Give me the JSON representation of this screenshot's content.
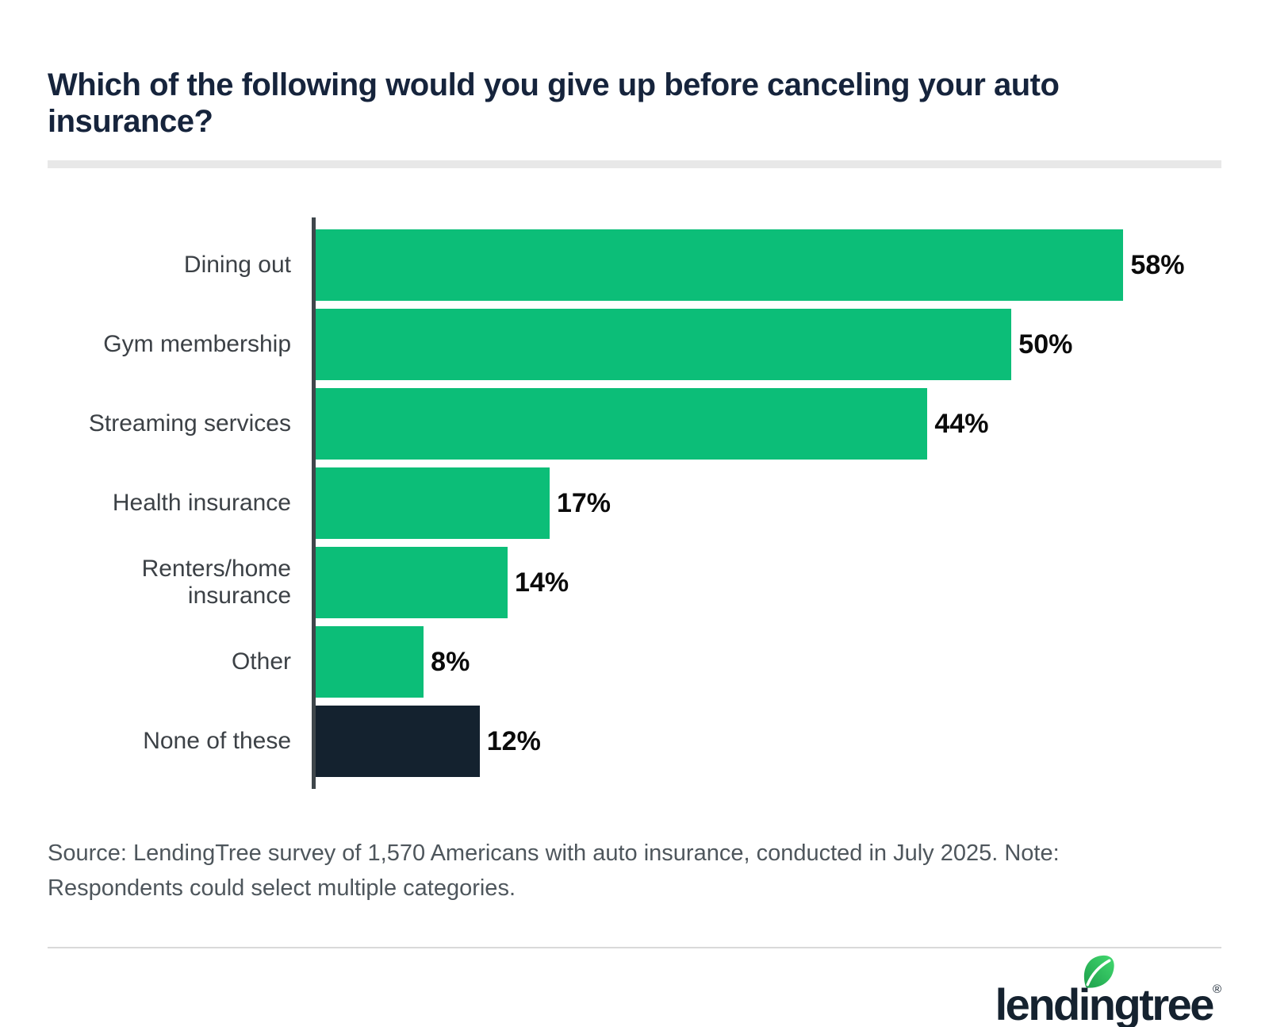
{
  "page": {
    "title": "Which of the following would you give up before canceling your auto insurance?",
    "source_note": "Source: LendingTree survey of 1,570 Americans with auto insurance, conducted in July 2025. Note: Respondents could select multiple categories.",
    "brand": {
      "logo_text": "lendingtree",
      "registered_mark": "®"
    }
  },
  "colors": {
    "bar_green": "#0CBE78",
    "bar_navy": "#14222F",
    "title_navy": "#16243C",
    "category_label_gray": "#3C4146",
    "value_label_black": "#0B0B0B",
    "axis_gray": "#3F464B",
    "title_rule_gray": "#E8E8E8",
    "divider_gray": "#D9D9D9",
    "source_text_gray": "#4E565C",
    "logo_navy": "#15222F",
    "leaf_green_dark": "#1C9F4B",
    "leaf_green_light": "#43D96F"
  },
  "chart_data": {
    "type": "bar",
    "orientation": "horizontal",
    "title": "Which of the following would you give up before canceling your auto insurance?",
    "categories": [
      "Dining out",
      "Gym membership",
      "Streaming services",
      "Health insurance",
      "Renters/home insurance",
      "Other",
      "None of these"
    ],
    "values": [
      58,
      50,
      44,
      17,
      14,
      8,
      12
    ],
    "axis_max": 65,
    "grid": false,
    "value_labels_shown": true,
    "rows": [
      {
        "label": "Dining out",
        "value": 58,
        "display": "58%",
        "color": "bar_green"
      },
      {
        "label": "Gym membership",
        "value": 50,
        "display": "50%",
        "color": "bar_green"
      },
      {
        "label": "Streaming services",
        "value": 44,
        "display": "44%",
        "color": "bar_green"
      },
      {
        "label": "Health insurance",
        "value": 17,
        "display": "17%",
        "color": "bar_green"
      },
      {
        "label": "Renters/home insurance",
        "value": 14,
        "display": "14%",
        "color": "bar_green"
      },
      {
        "label": "Other",
        "value": 8,
        "display": "8%",
        "color": "bar_green"
      },
      {
        "label": "None of these",
        "value": 12,
        "display": "12%",
        "color": "bar_navy"
      }
    ]
  }
}
